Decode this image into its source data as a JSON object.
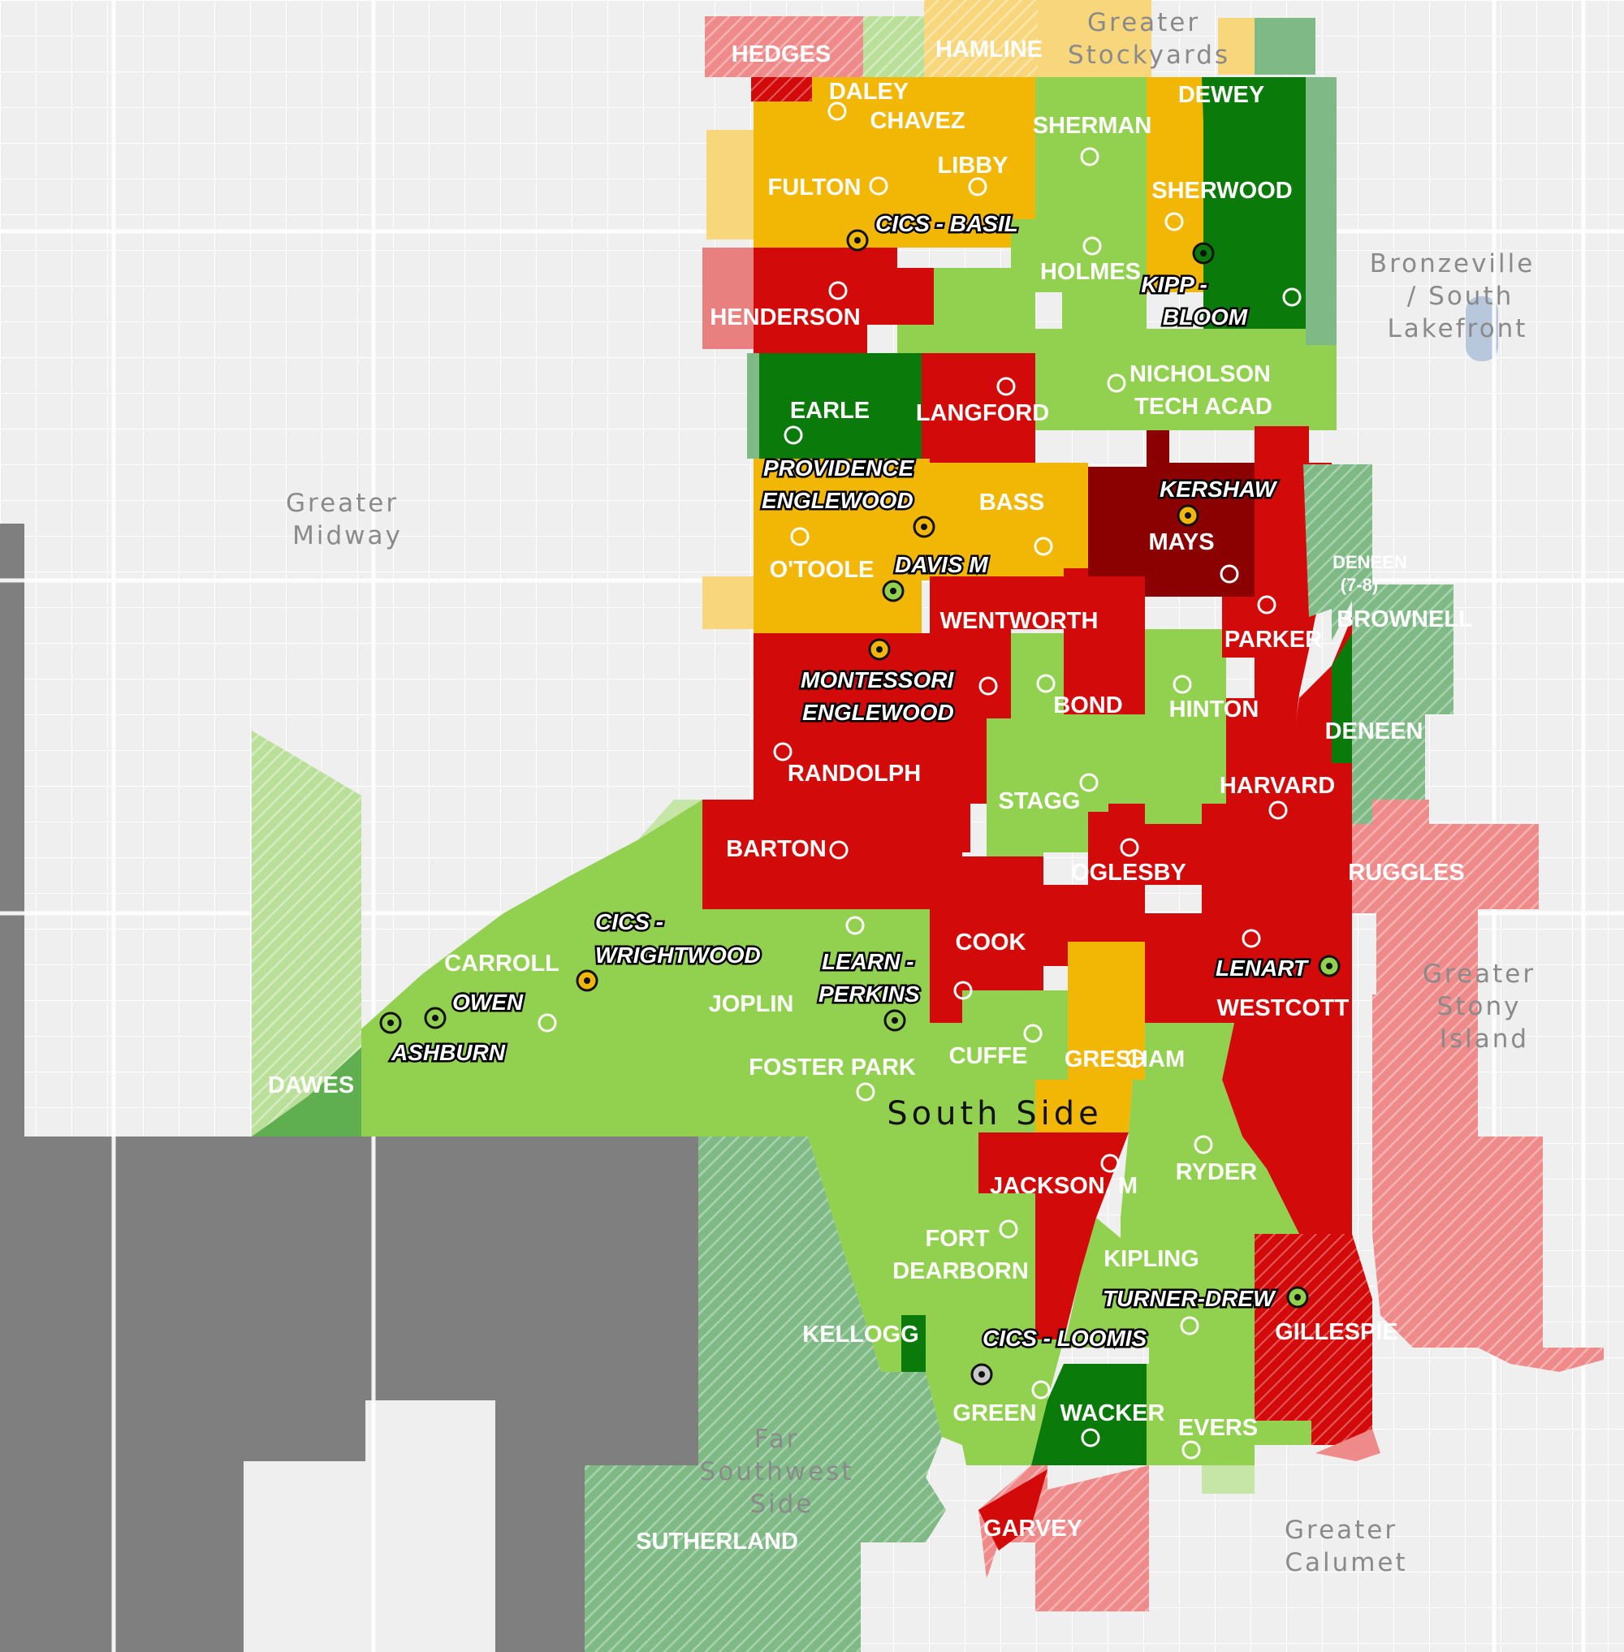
{
  "colors": {
    "background": "#efefef",
    "dark_red": "#8b0000",
    "red": "#d20a0a",
    "light_red_hatched": "#ee8a8a",
    "yellow": "#f2b705",
    "light_yellow": "#f8d67c",
    "dark_green": "#0a7a0a",
    "light_green": "#92d050",
    "pale_green": "#c5e6a6",
    "hatched_green": "#7fba86",
    "gray": "#7f7f7f"
  },
  "icons": {
    "school_marker": "hollow-circle",
    "charter_marker": "ringed-dot"
  },
  "regions": {
    "greater_stockyards": [
      "Greater",
      "Stockyards"
    ],
    "bronzeville": [
      "Bronzeville",
      "/ South",
      "Lakefront"
    ],
    "greater_midway": [
      "Greater",
      "Midway"
    ],
    "greater_stony_island": [
      "Greater",
      "Stony",
      "Island"
    ],
    "far_southwest_side": [
      "Far",
      "Southwest",
      "Side"
    ],
    "greater_calumet": [
      "Greater",
      "Calumet"
    ],
    "south_side": "South Side"
  },
  "attendance_areas": {
    "hedges": "HEDGES",
    "hamline": "HAMLINE",
    "daley": "DALEY",
    "chavez": "CHAVEZ",
    "sherman": "SHERMAN",
    "dewey": "DEWEY",
    "fulton": "FULTON",
    "libby": "LIBBY",
    "sherwood": "SHERWOOD",
    "holmes": "HOLMES",
    "henderson": "HENDERSON",
    "nicholson": [
      "NICHOLSON",
      "TECH ACAD"
    ],
    "earle": "EARLE",
    "langford": "LANGFORD",
    "bass": "BASS",
    "mays": "MAYS",
    "otoole": "O'TOOLE",
    "deneen_7_8": [
      "DENEEN",
      "(7-8)"
    ],
    "brownell": "BROWNELL",
    "wentworth": "WENTWORTH",
    "parker": "PARKER",
    "bond": "BOND",
    "hinton": "HINTON",
    "deneen": "DENEEN",
    "randolph": "RANDOLPH",
    "stagg": "STAGG",
    "harvard": "HARVARD",
    "barton": "BARTON",
    "oglesby": "OGLESBY",
    "ruggles": "RUGGLES",
    "carroll": "CARROLL",
    "cook": "COOK",
    "joplin": "JOPLIN",
    "westcott": "WESTCOTT",
    "dawes": "DAWES",
    "foster_park": "FOSTER PARK",
    "cuffe": "CUFFE",
    "gresham": "GRESHAM",
    "jackson_m": "JACKSON, M",
    "ryder": "RYDER",
    "fort_dearborn": [
      "FORT",
      "DEARBORN"
    ],
    "kipling": "KIPLING",
    "kellogg": "KELLOGG",
    "gillespie": "GILLESPIE",
    "green": "GREEN",
    "wacker": "WACKER",
    "evers": "EVERS",
    "garvey": "GARVEY",
    "sutherland": "SUTHERLAND"
  },
  "schools": {
    "cics_basil": "CICS - BASIL",
    "kipp_bloom": [
      "KIPP -",
      "BLOOM"
    ],
    "providence_englewood": [
      "PROVIDENCE",
      "ENGLEWOOD"
    ],
    "kershaw": "KERSHAW",
    "davis_m": "DAVIS M",
    "montessori_englewood": [
      "MONTESSORI",
      "ENGLEWOOD"
    ],
    "cics_wrightwood": [
      "CICS -",
      "WRIGHTWOOD"
    ],
    "learn_perkins": [
      "LEARN -",
      "PERKINS"
    ],
    "owen": "OWEN",
    "ashburn": "ASHBURN",
    "lenart": "LENART",
    "turner_drew": "TURNER-DREW",
    "cics_loomis": "CICS - LOOMIS"
  }
}
